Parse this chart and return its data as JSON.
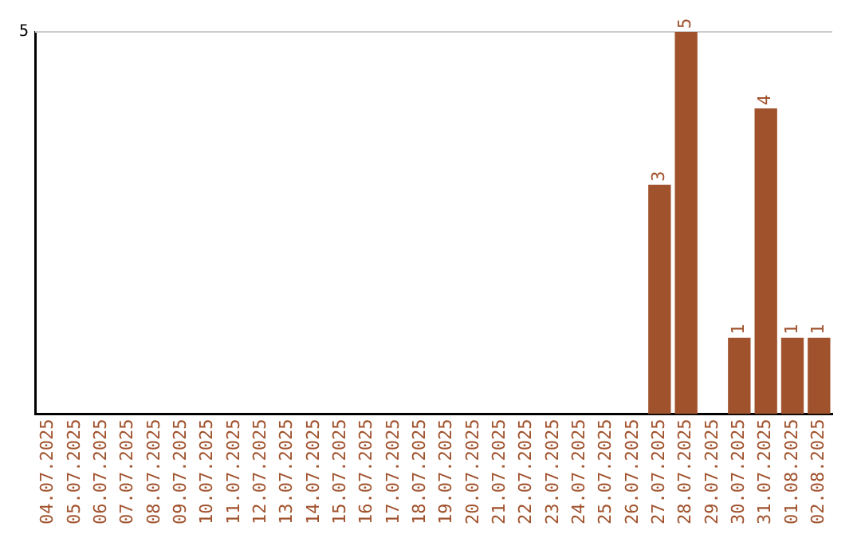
{
  "chart_data": {
    "type": "bar",
    "categories": [
      "04.07.2025",
      "05.07.2025",
      "06.07.2025",
      "07.07.2025",
      "08.07.2025",
      "09.07.2025",
      "10.07.2025",
      "11.07.2025",
      "12.07.2025",
      "13.07.2025",
      "14.07.2025",
      "15.07.2025",
      "16.07.2025",
      "17.07.2025",
      "18.07.2025",
      "19.07.2025",
      "20.07.2025",
      "21.07.2025",
      "22.07.2025",
      "23.07.2025",
      "24.07.2025",
      "25.07.2025",
      "26.07.2025",
      "27.07.2025",
      "28.07.2025",
      "29.07.2025",
      "30.07.2025",
      "31.07.2025",
      "01.08.2025",
      "02.08.2025"
    ],
    "values": [
      null,
      null,
      null,
      null,
      null,
      null,
      null,
      null,
      null,
      null,
      null,
      null,
      null,
      null,
      null,
      null,
      null,
      null,
      null,
      null,
      null,
      null,
      null,
      3,
      5,
      null,
      1,
      4,
      1,
      1
    ],
    "data_labels": true,
    "annotations": [
      "5"
    ],
    "ref_lines": [
      {
        "axis": "y",
        "value": 5,
        "color": "#cccccc"
      }
    ],
    "color": "#a0522d",
    "legend": false
  }
}
